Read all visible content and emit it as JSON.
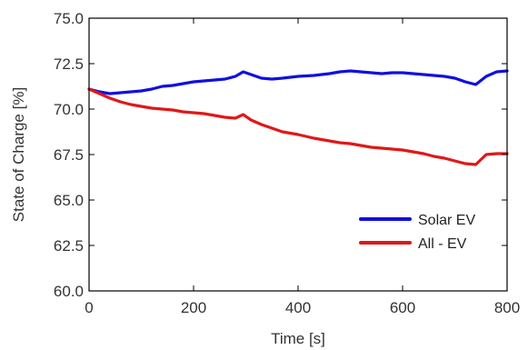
{
  "chart_data": {
    "type": "line",
    "title": "",
    "xlabel": "Time [s]",
    "ylabel": "State of Charge [%]",
    "xlim": [
      0,
      800
    ],
    "ylim": [
      60.0,
      75.0
    ],
    "xticks": [
      "0",
      "200",
      "400",
      "600",
      "800"
    ],
    "yticks": [
      "60.0",
      "62.5",
      "65.0",
      "67.5",
      "70.0",
      "72.5",
      "75.0"
    ],
    "grid": false,
    "legend_position": "bottom-right",
    "series": [
      {
        "name": "Solar EV",
        "color": "#1010e0",
        "x": [
          0,
          20,
          40,
          60,
          80,
          100,
          120,
          140,
          160,
          180,
          200,
          220,
          240,
          260,
          280,
          295,
          310,
          330,
          350,
          370,
          400,
          430,
          460,
          480,
          500,
          520,
          540,
          560,
          580,
          600,
          620,
          640,
          660,
          680,
          700,
          720,
          740,
          760,
          780,
          800
        ],
        "y": [
          71.1,
          70.95,
          70.85,
          70.9,
          70.95,
          71.0,
          71.1,
          71.25,
          71.3,
          71.4,
          71.5,
          71.55,
          71.6,
          71.65,
          71.8,
          72.05,
          71.9,
          71.7,
          71.65,
          71.7,
          71.8,
          71.85,
          71.95,
          72.05,
          72.1,
          72.05,
          72.0,
          71.95,
          72.0,
          72.0,
          71.95,
          71.9,
          71.85,
          71.8,
          71.7,
          71.5,
          71.35,
          71.8,
          72.05,
          72.1
        ]
      },
      {
        "name": "All - EV",
        "color": "#e01818",
        "x": [
          0,
          20,
          40,
          60,
          80,
          100,
          120,
          140,
          160,
          180,
          200,
          220,
          240,
          260,
          280,
          295,
          310,
          330,
          350,
          370,
          400,
          430,
          460,
          480,
          500,
          520,
          540,
          560,
          580,
          600,
          620,
          640,
          660,
          680,
          700,
          720,
          740,
          760,
          780,
          800
        ],
        "y": [
          71.1,
          70.85,
          70.6,
          70.4,
          70.25,
          70.15,
          70.05,
          70.0,
          69.95,
          69.85,
          69.8,
          69.75,
          69.65,
          69.55,
          69.5,
          69.7,
          69.4,
          69.15,
          68.95,
          68.75,
          68.6,
          68.4,
          68.25,
          68.15,
          68.1,
          68.0,
          67.9,
          67.85,
          67.8,
          67.75,
          67.65,
          67.55,
          67.4,
          67.3,
          67.15,
          67.0,
          66.95,
          67.5,
          67.55,
          67.55
        ]
      }
    ]
  }
}
